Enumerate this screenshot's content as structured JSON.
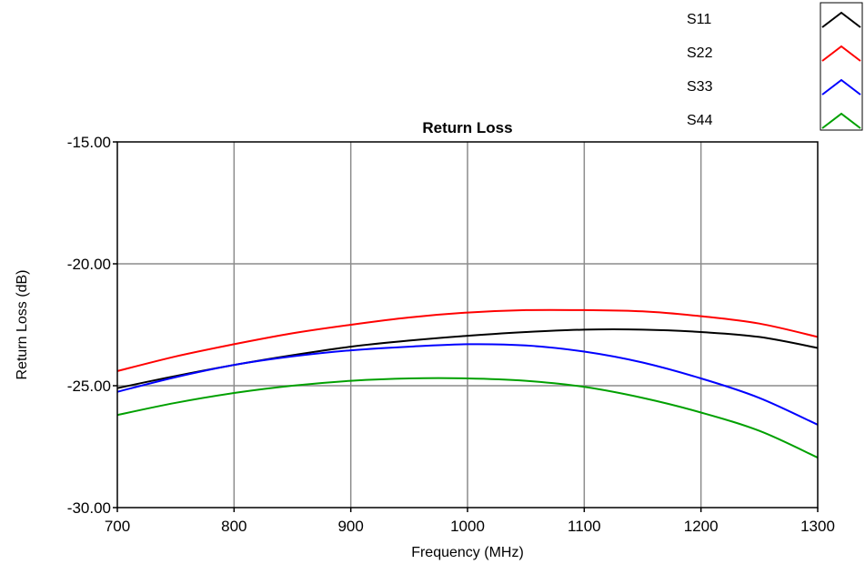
{
  "chart_data": {
    "type": "line",
    "title": "Return Loss",
    "xlabel": "Frequency (MHz)",
    "ylabel": "Return Loss (dB)",
    "xlim": [
      700,
      1300
    ],
    "ylim": [
      -30,
      -15
    ],
    "xticks": [
      700,
      800,
      900,
      1000,
      1100,
      1200,
      1300
    ],
    "xtick_labels": [
      "700",
      "800",
      "900",
      "1000",
      "1100",
      "1200",
      "1300"
    ],
    "yticks": [
      -15,
      -20,
      -25,
      -30
    ],
    "ytick_labels": [
      "-15.00",
      "-20.00",
      "-25.00",
      "-30.00"
    ],
    "grid": true,
    "legend_position": "top-right",
    "x": [
      700,
      750,
      800,
      850,
      900,
      950,
      1000,
      1050,
      1100,
      1150,
      1200,
      1250,
      1300
    ],
    "series": [
      {
        "name": "S11",
        "color": "#000000",
        "values": [
          -25.1,
          -24.6,
          -24.15,
          -23.75,
          -23.4,
          -23.15,
          -22.95,
          -22.8,
          -22.7,
          -22.7,
          -22.8,
          -23.0,
          -23.45
        ]
      },
      {
        "name": "S22",
        "color": "#ff0000",
        "values": [
          -24.4,
          -23.8,
          -23.3,
          -22.85,
          -22.5,
          -22.2,
          -22.0,
          -21.9,
          -21.9,
          -21.95,
          -22.15,
          -22.45,
          -23.0
        ]
      },
      {
        "name": "S33",
        "color": "#0000ff",
        "values": [
          -25.25,
          -24.65,
          -24.15,
          -23.8,
          -23.55,
          -23.4,
          -23.3,
          -23.35,
          -23.6,
          -24.05,
          -24.7,
          -25.5,
          -26.6
        ]
      },
      {
        "name": "S44",
        "color": "#00a000",
        "values": [
          -26.2,
          -25.7,
          -25.3,
          -25.0,
          -24.8,
          -24.7,
          -24.7,
          -24.8,
          -25.05,
          -25.5,
          -26.1,
          -26.85,
          -27.95
        ]
      }
    ]
  }
}
